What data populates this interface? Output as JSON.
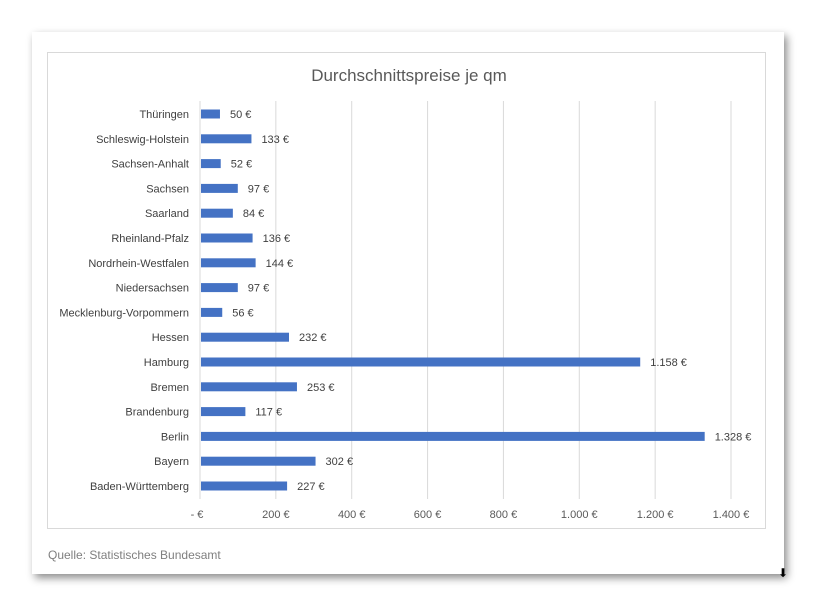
{
  "chart_data": {
    "type": "bar",
    "orientation": "horizontal",
    "title": "Durchschnittspreise je qm",
    "categories": [
      "Thüringen",
      "Schleswig-Holstein",
      "Sachsen-Anhalt",
      "Sachsen",
      "Saarland",
      "Rheinland-Pfalz",
      "Nordrhein-Westfalen",
      "Niedersachsen",
      "Mecklenburg-Vorpommern",
      "Hessen",
      "Hamburg",
      "Bremen",
      "Brandenburg",
      "Berlin",
      "Bayern",
      "Baden-Württemberg"
    ],
    "values": [
      50,
      133,
      52,
      97,
      84,
      136,
      144,
      97,
      56,
      232,
      1158,
      253,
      117,
      1328,
      302,
      227
    ],
    "data_labels": [
      "50 €",
      "133 €",
      "52 €",
      "97 €",
      "84 €",
      "136 €",
      "144 €",
      "97 €",
      "56 €",
      "232 €",
      "1.158 €",
      "253 €",
      "117 €",
      "1.328 €",
      "302 €",
      "227 €"
    ],
    "xlim": [
      0,
      1400
    ],
    "xticks": [
      0,
      200,
      400,
      600,
      800,
      1000,
      1200,
      1400
    ],
    "xtick_labels": [
      "-  €",
      "200 €",
      "400 €",
      "600 €",
      "800 €",
      "1.000 €",
      "1.200 €",
      "1.400 €"
    ],
    "xlabel": "",
    "ylabel": "",
    "grid": true,
    "bar_color": "#4472c4"
  },
  "source": "Quelle: Statistisches Bundesamt"
}
